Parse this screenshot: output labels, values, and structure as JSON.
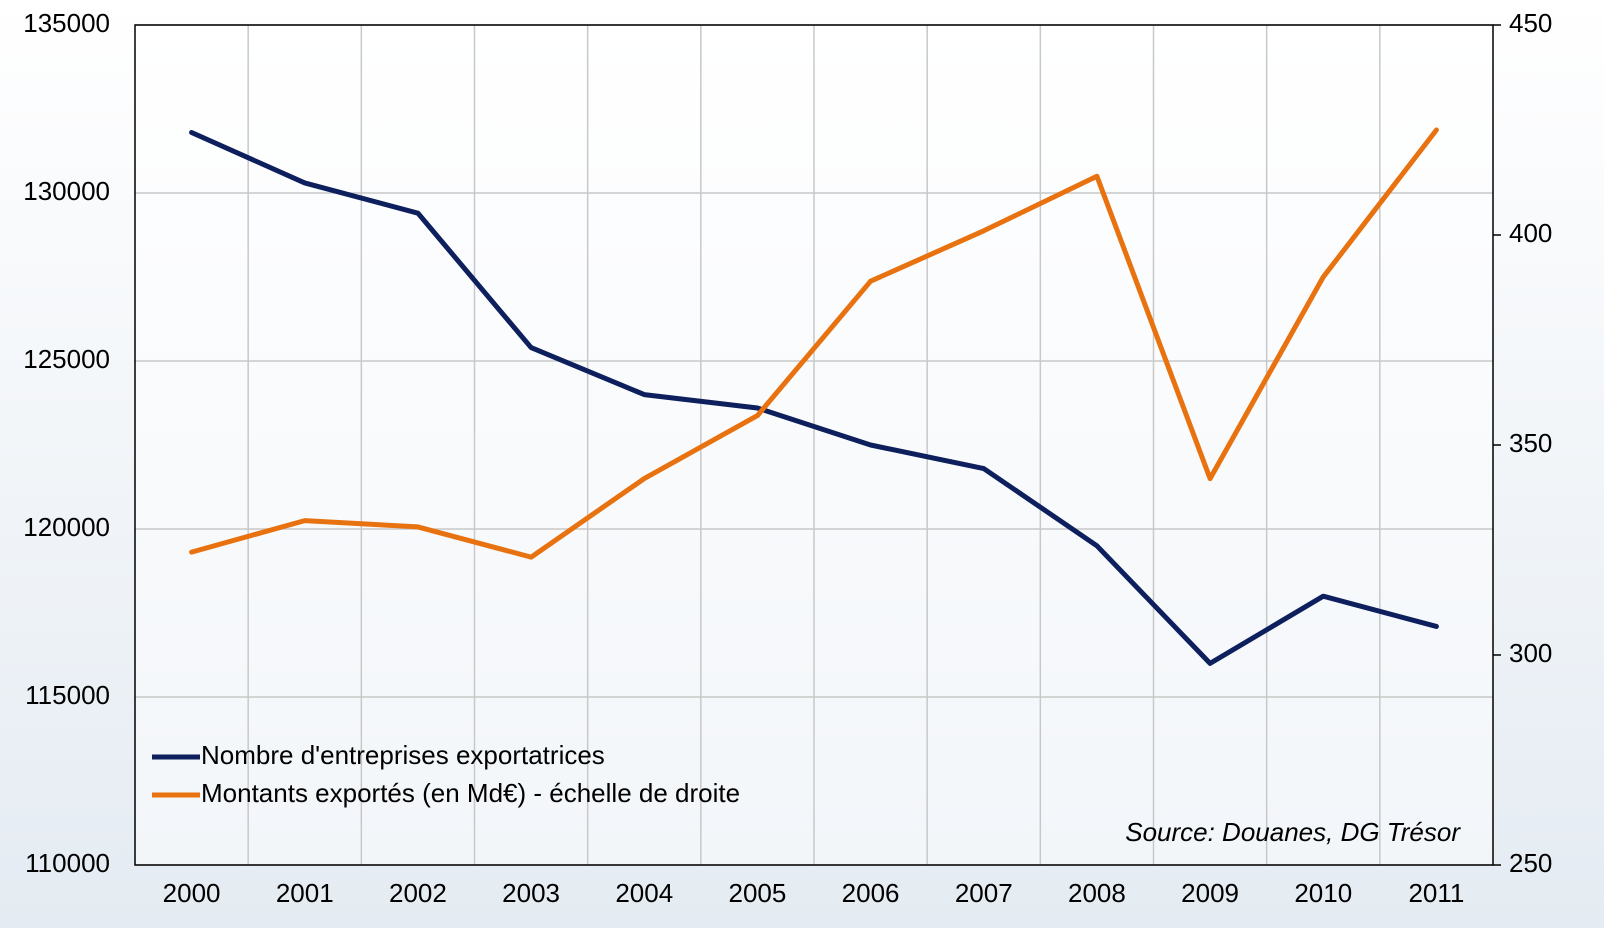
{
  "chart_data": {
    "type": "line",
    "categories": [
      "2000",
      "2001",
      "2002",
      "2003",
      "2004",
      "2005",
      "2006",
      "2007",
      "2008",
      "2009",
      "2010",
      "2011"
    ],
    "series": [
      {
        "name": "Nombre d'entreprises exportatrices",
        "color": "#0d1f5c",
        "values": [
          131800,
          130300,
          129400,
          125400,
          124000,
          123600,
          122500,
          121800,
          119500,
          116000,
          118000,
          117100
        ]
      },
      {
        "name": "Montants exportés (en Md€) - échelle de droite",
        "color": "#e8720f",
        "axis": "y2",
        "values": [
          324.5,
          332,
          330.5,
          323.3,
          342,
          357,
          389,
          401,
          414,
          342,
          390,
          425
        ]
      }
    ],
    "ylim": [
      110000,
      135000
    ],
    "yticks": [
      110000,
      115000,
      120000,
      125000,
      130000,
      135000
    ],
    "y2lim": [
      250,
      450
    ],
    "y2ticks": [
      250,
      300,
      350,
      400,
      450
    ],
    "grid": true,
    "legend": "lower left",
    "annotation": "Source: Douanes, DG Trésor"
  }
}
